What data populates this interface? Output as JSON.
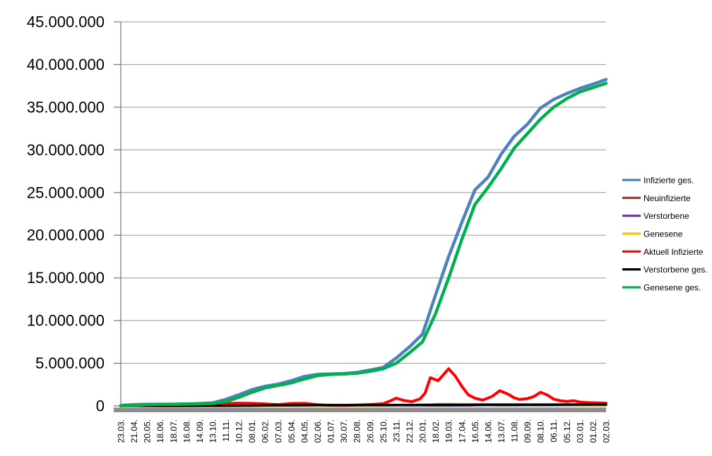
{
  "chart_data": {
    "type": "line",
    "title": "",
    "grid": "horizontal",
    "legend_position": "right",
    "value_unit": "millions",
    "y_axis": {
      "min": 0,
      "max": 45000000,
      "step": 5000000,
      "tick_labels": [
        "0",
        "5.000.000",
        "10.000.000",
        "15.000.000",
        "20.000.000",
        "25.000.000",
        "30.000.000",
        "35.000.000",
        "40.000.000",
        "45.000.000"
      ]
    },
    "x_axis": {
      "rotation": -90,
      "tick_labels": [
        "23.03.",
        "21.04.",
        "20.05.",
        "18.06.",
        "18.07.",
        "16.08.",
        "14.09.",
        "13.10.",
        "11.11.",
        "10.12.",
        "08.01.",
        "06.02.",
        "07.03.",
        "05.04.",
        "04.05.",
        "02.06.",
        "01.07.",
        "30.07.",
        "28.08.",
        "26.09.",
        "25.10.",
        "23.11.",
        "22.12.",
        "20.01.",
        "18.02.",
        "19.03.",
        "17.04.",
        "16.05.",
        "14.06.",
        "13.07.",
        "11.08.",
        "09.09.",
        "08.10.",
        "06.11.",
        "05.12.",
        "03.01.",
        "01.02.",
        "02.03."
      ]
    },
    "series": [
      {
        "name": "Infizierte ges.",
        "color": "#4F81BD",
        "stroke_width": 4.5,
        "values": [
          0.05,
          0.15,
          0.18,
          0.19,
          0.2,
          0.23,
          0.27,
          0.35,
          0.75,
          1.3,
          1.9,
          2.3,
          2.55,
          2.95,
          3.45,
          3.7,
          3.74,
          3.78,
          3.92,
          4.2,
          4.5,
          5.6,
          6.9,
          8.4,
          13.0,
          17.5,
          21.5,
          25.3,
          26.8,
          29.5,
          31.6,
          33.0,
          34.9,
          35.9,
          36.6,
          37.2,
          37.7,
          38.25
        ]
      },
      {
        "name": "Neuinfizierte",
        "color": "#953735",
        "stroke_width": 2.5,
        "values": [
          0.004,
          0.003,
          0.001,
          0.001,
          0.001,
          0.001,
          0.002,
          0.006,
          0.019,
          0.025,
          0.022,
          0.01,
          0.009,
          0.016,
          0.018,
          0.005,
          0.001,
          0.002,
          0.008,
          0.009,
          0.013,
          0.045,
          0.04,
          0.07,
          0.2,
          0.25,
          0.16,
          0.06,
          0.055,
          0.1,
          0.08,
          0.05,
          0.08,
          0.05,
          0.04,
          0.02,
          0.015,
          0.014
        ]
      },
      {
        "name": "Verstorbene",
        "color": "#7030A0",
        "stroke_width": 2.5,
        "values": [
          0.0002,
          0.0002,
          0.0001,
          0.0001,
          0.0001,
          0.0,
          0.0,
          0.0001,
          0.0002,
          0.0005,
          0.0008,
          0.0006,
          0.0003,
          0.0002,
          0.0002,
          0.0001,
          0.0001,
          0.0,
          0.0,
          0.0001,
          0.0001,
          0.0002,
          0.0004,
          0.0003,
          0.0002,
          0.0003,
          0.0003,
          0.0002,
          0.0001,
          0.0001,
          0.0002,
          0.0001,
          0.0002,
          0.0002,
          0.0002,
          0.0002,
          0.0001,
          0.0001
        ]
      },
      {
        "name": "Genesene",
        "color": "#FFC000",
        "stroke_width": 3,
        "values": [
          0.002,
          0.004,
          0.002,
          0.001,
          0.001,
          0.001,
          0.002,
          0.004,
          0.012,
          0.022,
          0.022,
          0.012,
          0.008,
          0.013,
          0.018,
          0.008,
          0.002,
          0.002,
          0.006,
          0.008,
          0.01,
          0.03,
          0.04,
          0.055,
          0.13,
          0.22,
          0.19,
          0.08,
          0.05,
          0.09,
          0.08,
          0.05,
          0.07,
          0.05,
          0.04,
          0.025,
          0.015,
          0.012
        ]
      },
      {
        "name": "Aktuell Infizierte",
        "color": "#FF0000",
        "stroke_width": 4,
        "points": [
          [
            0,
            0.03
          ],
          [
            0.4,
            0.08
          ],
          [
            0.8,
            0.06
          ],
          [
            1.5,
            0.03
          ],
          [
            2,
            0.02
          ],
          [
            3,
            0.01
          ],
          [
            4,
            0.01
          ],
          [
            5,
            0.02
          ],
          [
            6,
            0.03
          ],
          [
            7,
            0.07
          ],
          [
            7.7,
            0.2
          ],
          [
            8,
            0.28
          ],
          [
            9,
            0.32
          ],
          [
            10,
            0.3
          ],
          [
            11,
            0.22
          ],
          [
            12,
            0.15
          ],
          [
            13,
            0.28
          ],
          [
            14,
            0.3
          ],
          [
            15,
            0.13
          ],
          [
            16,
            0.06
          ],
          [
            17,
            0.05
          ],
          [
            18,
            0.1
          ],
          [
            19,
            0.16
          ],
          [
            20,
            0.25
          ],
          [
            20.5,
            0.55
          ],
          [
            21,
            0.9
          ],
          [
            21.6,
            0.62
          ],
          [
            22.2,
            0.5
          ],
          [
            22.8,
            0.8
          ],
          [
            23.2,
            1.5
          ],
          [
            23.6,
            3.3
          ],
          [
            24.2,
            2.95
          ],
          [
            25,
            4.35
          ],
          [
            25.5,
            3.5
          ],
          [
            26,
            2.3
          ],
          [
            26.5,
            1.3
          ],
          [
            27,
            0.9
          ],
          [
            27.6,
            0.68
          ],
          [
            28.3,
            1.1
          ],
          [
            28.9,
            1.78
          ],
          [
            29.5,
            1.4
          ],
          [
            30,
            0.95
          ],
          [
            30.4,
            0.75
          ],
          [
            31,
            0.85
          ],
          [
            31.5,
            1.1
          ],
          [
            32,
            1.6
          ],
          [
            32.5,
            1.3
          ],
          [
            33,
            0.8
          ],
          [
            33.5,
            0.6
          ],
          [
            34,
            0.52
          ],
          [
            34.5,
            0.6
          ],
          [
            35,
            0.45
          ],
          [
            35.5,
            0.4
          ],
          [
            36,
            0.36
          ],
          [
            36.5,
            0.34
          ],
          [
            37,
            0.32
          ]
        ]
      },
      {
        "name": "Verstorbene ges.",
        "color": "#000000",
        "stroke_width": 3.5,
        "values": [
          0.001,
          0.002,
          0.008,
          0.009,
          0.009,
          0.009,
          0.009,
          0.01,
          0.012,
          0.02,
          0.037,
          0.06,
          0.071,
          0.077,
          0.084,
          0.089,
          0.091,
          0.092,
          0.092,
          0.093,
          0.095,
          0.1,
          0.108,
          0.116,
          0.121,
          0.126,
          0.132,
          0.137,
          0.14,
          0.142,
          0.144,
          0.147,
          0.15,
          0.153,
          0.157,
          0.161,
          0.165,
          0.168
        ]
      },
      {
        "name": "Genesene ges.",
        "color": "#00B050",
        "stroke_width": 4.5,
        "values": [
          0.02,
          0.07,
          0.15,
          0.18,
          0.19,
          0.21,
          0.24,
          0.3,
          0.5,
          1.0,
          1.6,
          2.1,
          2.4,
          2.7,
          3.15,
          3.55,
          3.69,
          3.73,
          3.84,
          4.05,
          4.35,
          5.0,
          6.2,
          7.5,
          10.8,
          15.0,
          19.5,
          23.6,
          25.6,
          27.8,
          30.2,
          31.9,
          33.6,
          35.0,
          36.0,
          36.8,
          37.3,
          37.8
        ]
      }
    ],
    "colors": {
      "gridline": "#969696",
      "axis_line": "#808080",
      "axis_bar": "#8C8C8C",
      "label_text": "#000000",
      "background": "#FFFFFF"
    }
  }
}
